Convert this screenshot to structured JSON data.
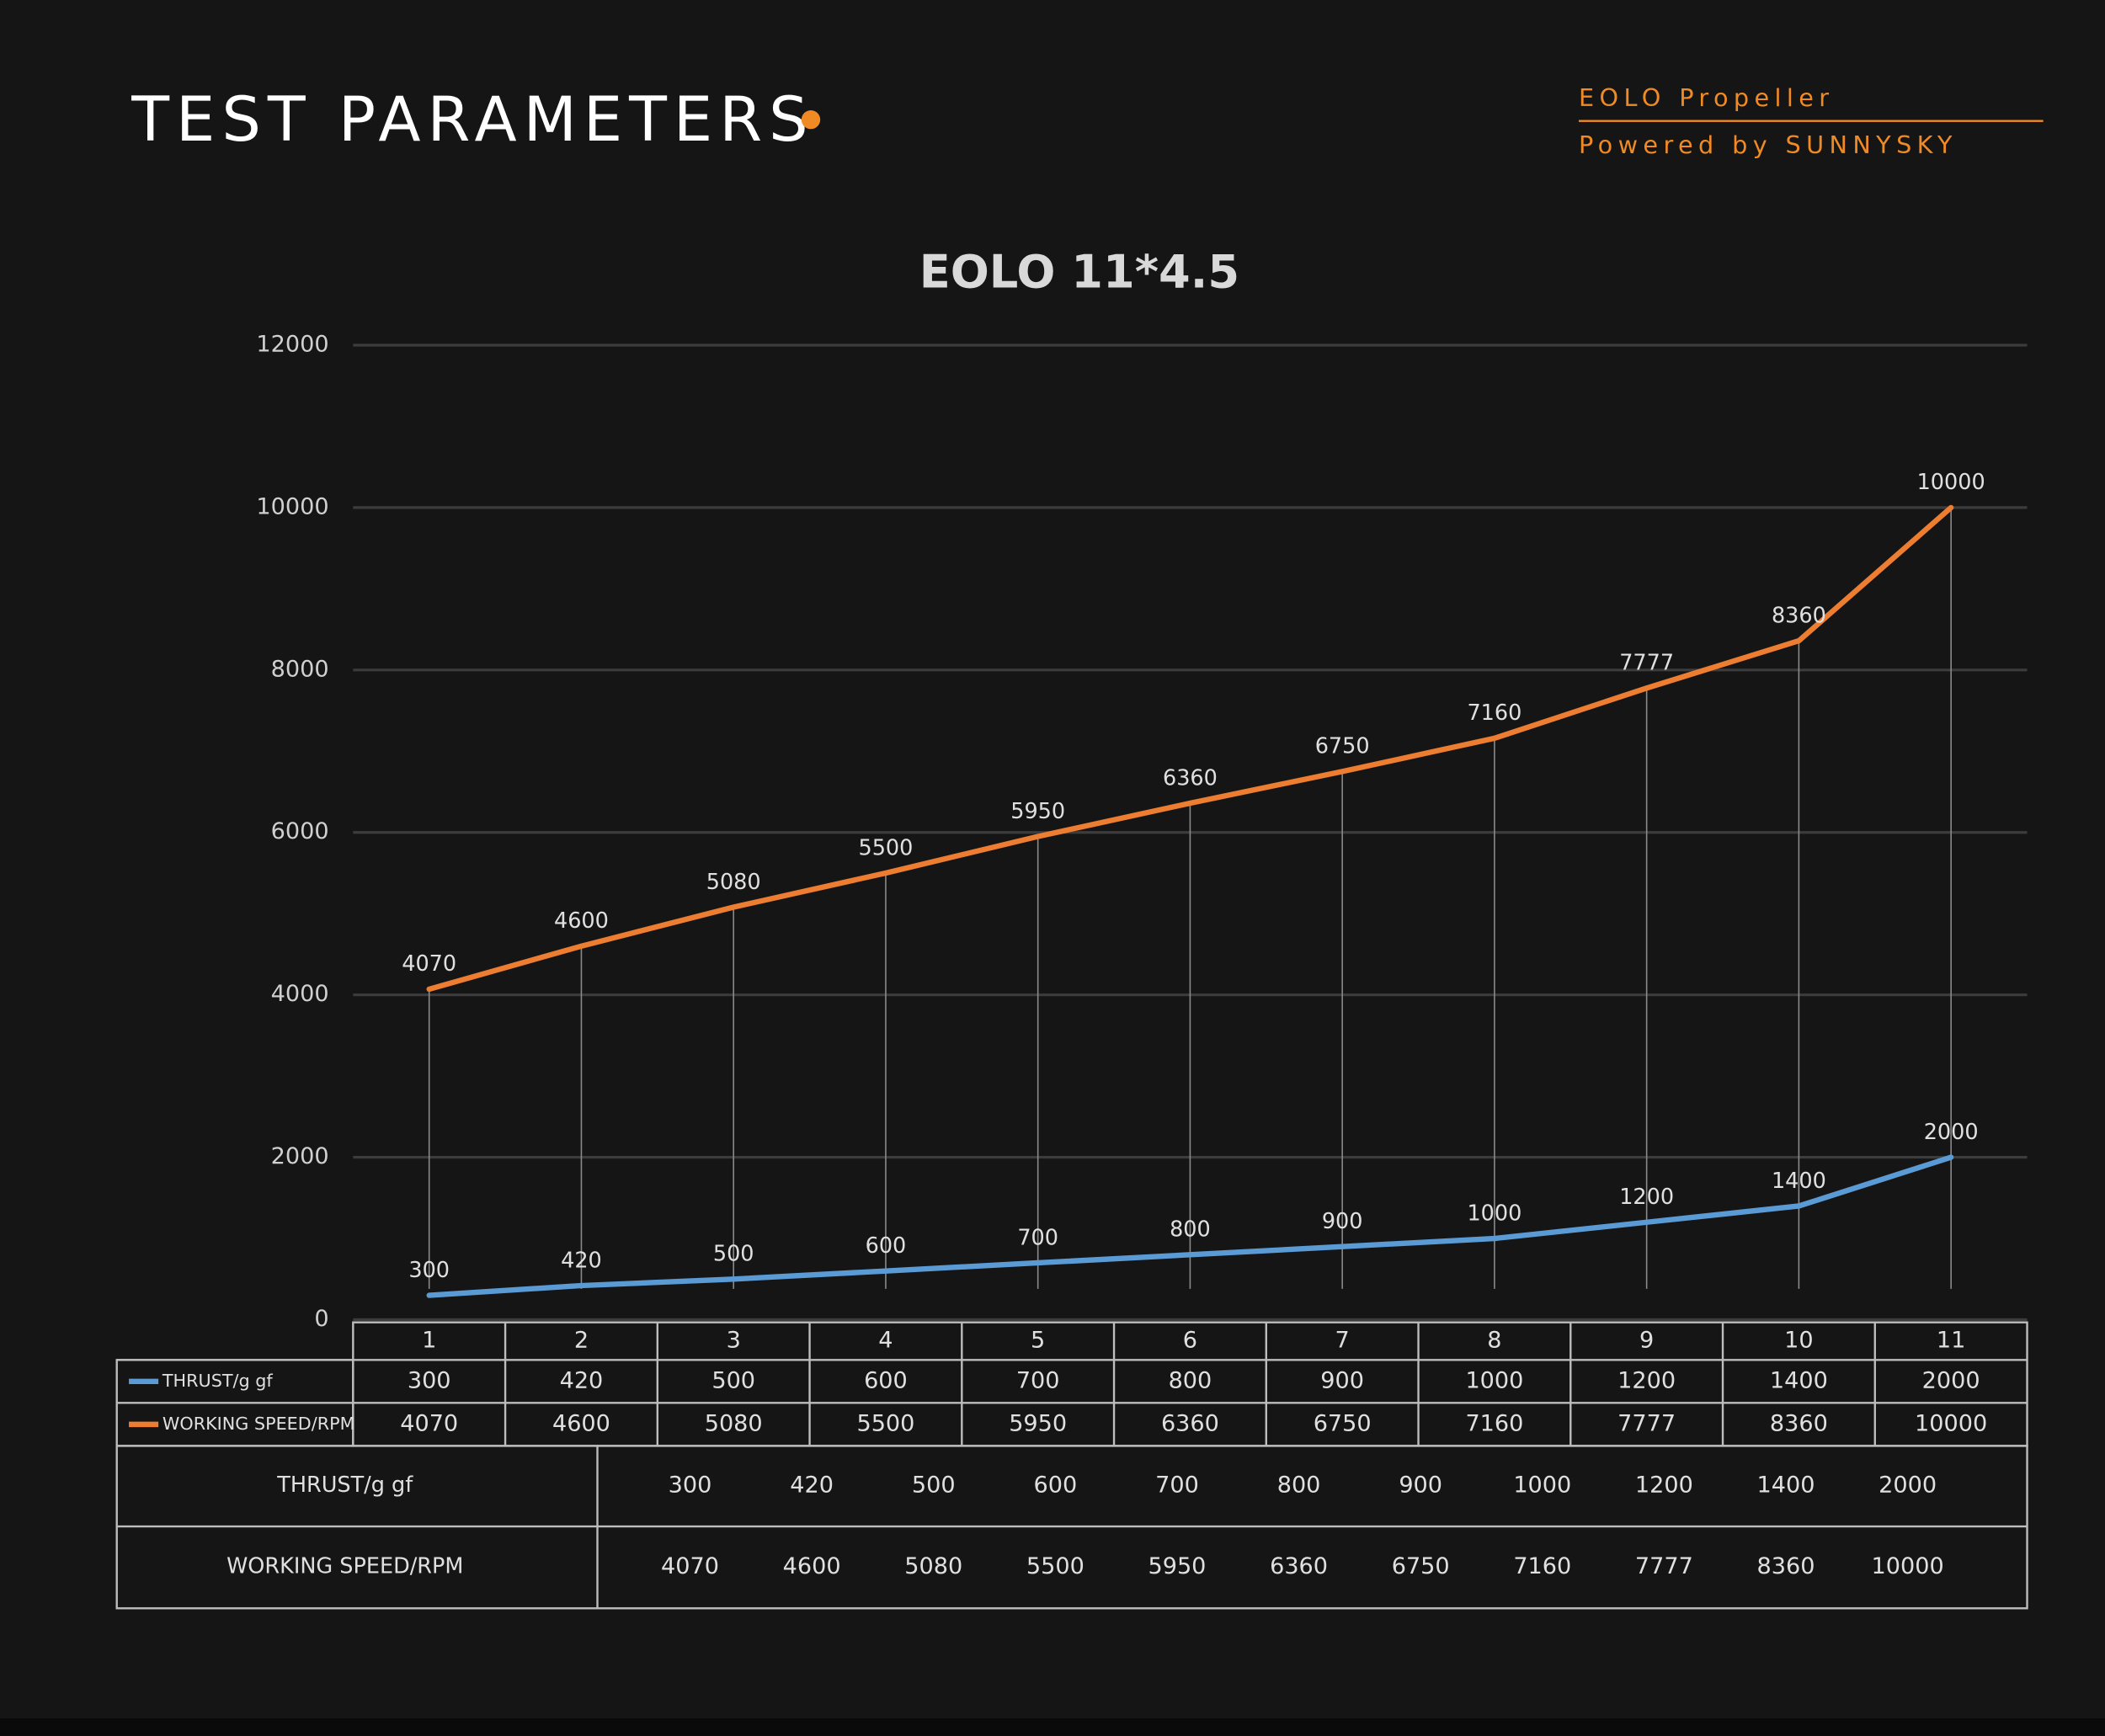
{
  "header": {
    "title": "TEST PARAMETERS",
    "brand": "EOLO Propeller",
    "tagline": "Powered by SUNNYSKY"
  },
  "chart_data": {
    "type": "line",
    "title": "EOLO 11*4.5",
    "categories": [
      "1",
      "2",
      "3",
      "4",
      "5",
      "6",
      "7",
      "8",
      "9",
      "10",
      "11"
    ],
    "series": [
      {
        "name": "THRUST/g gf",
        "color": "#5b9bd5",
        "values": [
          300,
          420,
          500,
          600,
          700,
          800,
          900,
          1000,
          1200,
          1400,
          2000
        ]
      },
      {
        "name": "WORKING SPEED/RPM",
        "color": "#ed7d31",
        "values": [
          4070,
          4600,
          5080,
          5500,
          5950,
          6360,
          6750,
          7160,
          7777,
          8360,
          10000
        ]
      }
    ],
    "ylim": [
      0,
      12000
    ],
    "yticks": [
      0,
      2000,
      4000,
      6000,
      8000,
      10000,
      12000
    ],
    "grid": true
  }
}
